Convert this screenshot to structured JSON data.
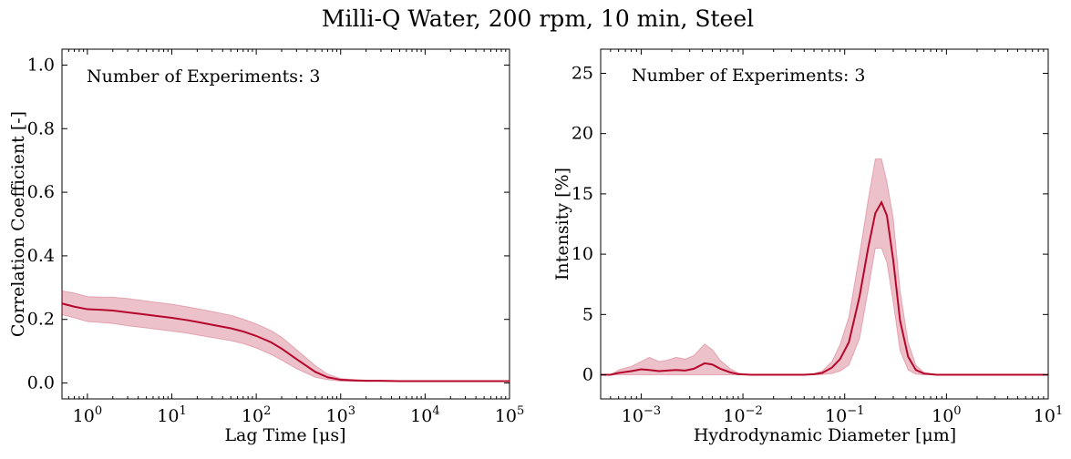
{
  "figure": {
    "title": "Milli-Q Water, 200 rpm, 10 min, Steel"
  },
  "colors": {
    "line": "#b5072b",
    "band": "#b5072b",
    "band_opacity": 0.25
  },
  "chart_data": [
    {
      "type": "line",
      "annotation": "Number of Experiments: 3",
      "xlabel": "Lag Time [μs]",
      "ylabel": "Correlation Coefficient [-]",
      "xscale": "log",
      "xlim": [
        0.5,
        100000
      ],
      "ylim": [
        -0.05,
        1.05
      ],
      "xticks": [
        1,
        10,
        100,
        1000,
        10000,
        100000
      ],
      "xtick_labels": [
        "10^0",
        "10^1",
        "10^2",
        "10^3",
        "10^4",
        "10^5"
      ],
      "yticks": [
        0.0,
        0.2,
        0.4,
        0.6,
        0.8,
        1.0
      ],
      "ytick_labels": [
        "0.0",
        "0.2",
        "0.4",
        "0.6",
        "0.8",
        "1.0"
      ],
      "grid": false,
      "series": [
        {
          "x": [
            0.5,
            0.7,
            1,
            1.5,
            2,
            3,
            5,
            7,
            10,
            15,
            20,
            30,
            50,
            70,
            100,
            150,
            200,
            300,
            500,
            700,
            1000,
            1500,
            2000,
            3000,
            5000,
            10000,
            20000,
            50000,
            100000
          ],
          "y": [
            0.25,
            0.24,
            0.232,
            0.23,
            0.228,
            0.222,
            0.215,
            0.21,
            0.205,
            0.198,
            0.192,
            0.183,
            0.172,
            0.162,
            0.148,
            0.128,
            0.108,
            0.075,
            0.035,
            0.018,
            0.01,
            0.008,
            0.007,
            0.007,
            0.006,
            0.006,
            0.006,
            0.006,
            0.006
          ],
          "lower": [
            0.215,
            0.205,
            0.193,
            0.19,
            0.187,
            0.18,
            0.173,
            0.168,
            0.163,
            0.157,
            0.151,
            0.143,
            0.133,
            0.124,
            0.11,
            0.09,
            0.072,
            0.045,
            0.018,
            0.01,
            0.006,
            0.005,
            0.005,
            0.005,
            0.005,
            0.005,
            0.005,
            0.005,
            0.005
          ],
          "upper": [
            0.29,
            0.283,
            0.272,
            0.27,
            0.27,
            0.266,
            0.258,
            0.253,
            0.248,
            0.24,
            0.234,
            0.225,
            0.213,
            0.201,
            0.186,
            0.165,
            0.144,
            0.105,
            0.055,
            0.028,
            0.014,
            0.01,
            0.009,
            0.008,
            0.007,
            0.007,
            0.007,
            0.007,
            0.007
          ]
        }
      ]
    },
    {
      "type": "line",
      "annotation": "Number of Experiments: 3",
      "xlabel": "Hydrodynamic Diameter [μm]",
      "ylabel": "Intensity [%]",
      "xscale": "log",
      "xlim": [
        0.0004,
        10
      ],
      "ylim": [
        -2,
        27
      ],
      "xticks": [
        0.001,
        0.01,
        0.1,
        1,
        10
      ],
      "xtick_labels": [
        "10^-3",
        "10^-2",
        "10^-1",
        "10^0",
        "10^1"
      ],
      "yticks": [
        0,
        5,
        10,
        15,
        20,
        25
      ],
      "ytick_labels": [
        "0",
        "5",
        "10",
        "15",
        "20",
        "25"
      ],
      "grid": false,
      "series": [
        {
          "x": [
            0.0004,
            0.0005,
            0.0006,
            0.0008,
            0.001,
            0.0012,
            0.0015,
            0.0018,
            0.0022,
            0.0027,
            0.0033,
            0.0042,
            0.005,
            0.006,
            0.0075,
            0.009,
            0.012,
            0.02,
            0.04,
            0.05,
            0.06,
            0.075,
            0.09,
            0.11,
            0.14,
            0.17,
            0.2,
            0.23,
            0.26,
            0.3,
            0.35,
            0.42,
            0.5,
            0.6,
            0.8,
            1.0,
            2,
            5,
            10
          ],
          "y": [
            0,
            0,
            0.15,
            0.3,
            0.45,
            0.4,
            0.3,
            0.35,
            0.4,
            0.35,
            0.5,
            0.95,
            0.85,
            0.5,
            0.2,
            0.05,
            0,
            0,
            0,
            0.05,
            0.15,
            0.6,
            1.3,
            2.7,
            6.5,
            10.5,
            13.4,
            14.3,
            13.2,
            9.5,
            4.5,
            1.5,
            0.4,
            0.1,
            0,
            0,
            0,
            0,
            0
          ],
          "lower": [
            0,
            0,
            0,
            0,
            0,
            0,
            0,
            0,
            0,
            0,
            0,
            0,
            0,
            0,
            0,
            0,
            0,
            0,
            0,
            0,
            0.02,
            0.1,
            0.3,
            0.8,
            3.0,
            7.0,
            10.5,
            10.5,
            9.3,
            6.0,
            2.0,
            0.4,
            0.05,
            0,
            0,
            0,
            0,
            0,
            0
          ],
          "upper": [
            0,
            0,
            0.4,
            0.7,
            1.1,
            1.45,
            1.1,
            1.2,
            1.45,
            1.3,
            1.6,
            2.55,
            2.1,
            1.2,
            0.5,
            0.15,
            0,
            0,
            0,
            0.1,
            0.3,
            1.1,
            2.5,
            4.8,
            10.0,
            14.5,
            17.9,
            17.9,
            16.0,
            13.0,
            7.0,
            2.7,
            0.8,
            0.2,
            0,
            0,
            0,
            0,
            0
          ]
        }
      ]
    }
  ]
}
